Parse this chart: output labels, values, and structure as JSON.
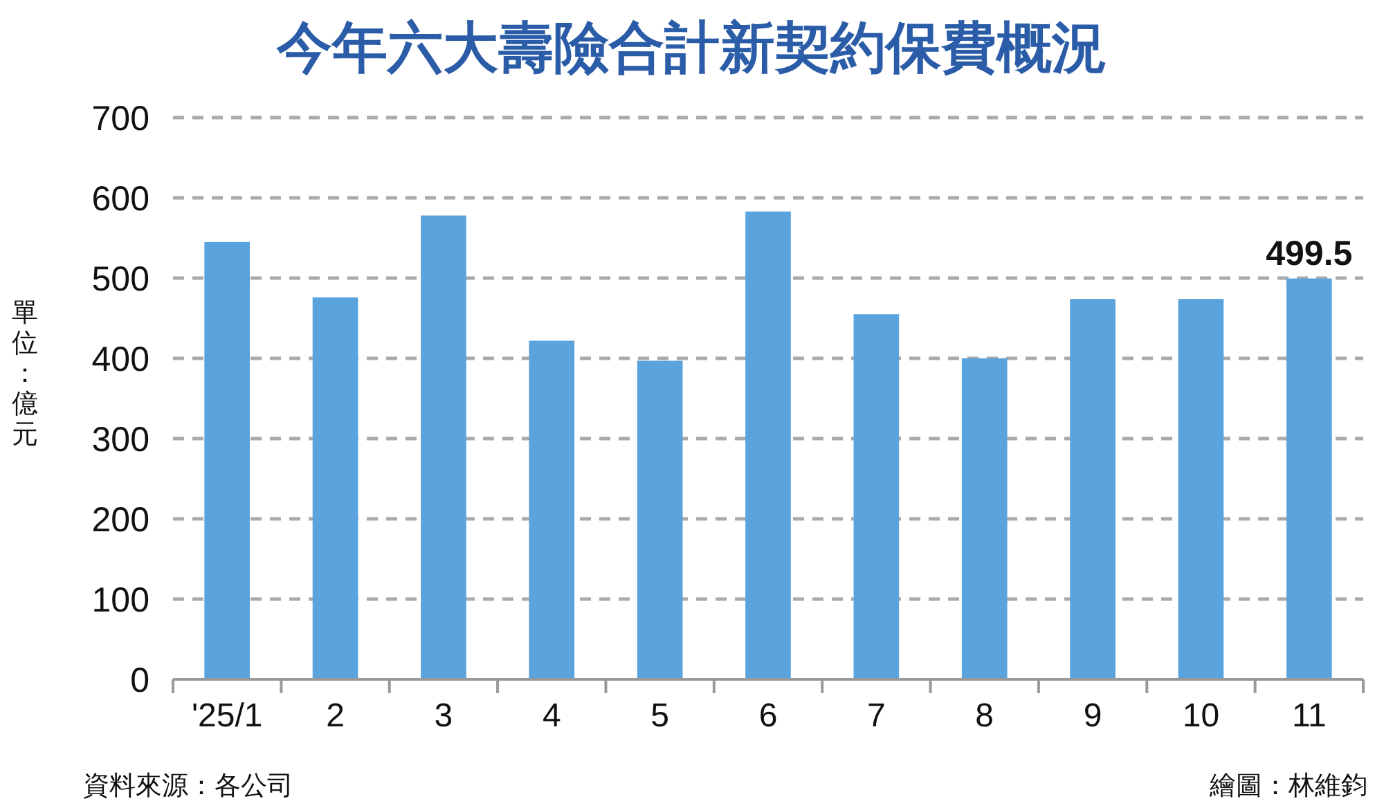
{
  "chart_data": {
    "type": "bar",
    "title": "今年六大壽險合計新契約保費概況",
    "ylabel": "單位：億元",
    "categories": [
      "'25/1",
      "2",
      "3",
      "4",
      "5",
      "6",
      "7",
      "8",
      "9",
      "10",
      "11"
    ],
    "values": [
      545,
      476,
      578,
      422,
      397,
      583,
      455,
      400,
      474,
      474,
      499.5
    ],
    "value_labels": [
      null,
      null,
      null,
      null,
      null,
      null,
      null,
      null,
      null,
      null,
      "499.5"
    ],
    "color": "#5ba3dc",
    "ylim": [
      0,
      700
    ],
    "yticks": [
      0,
      100,
      200,
      300,
      400,
      500,
      600,
      700
    ],
    "grid": "y",
    "annotations": [
      "資料來源：各公司",
      "繪圖：林維鈞"
    ]
  }
}
